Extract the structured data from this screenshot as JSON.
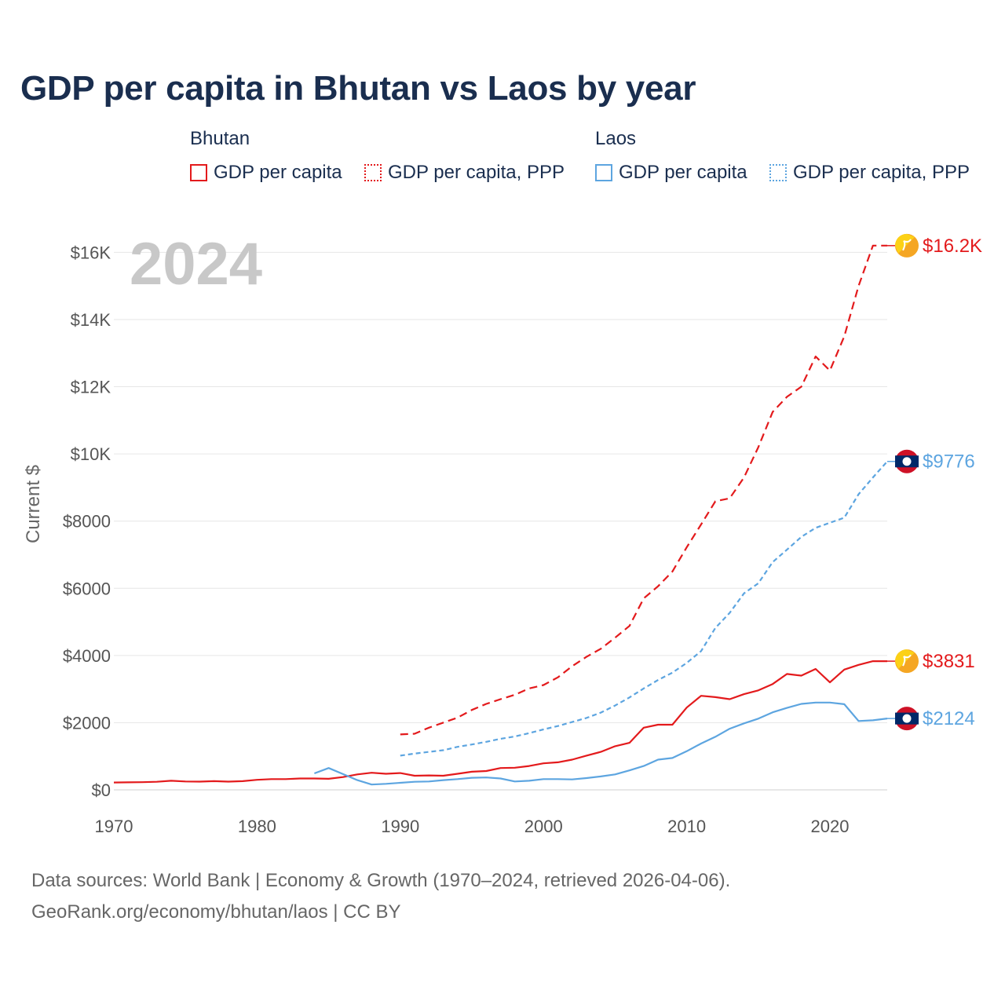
{
  "title": "GDP per capita in Bhutan vs Laos by year",
  "legend": {
    "groups": [
      {
        "name": "Bhutan",
        "color": "#e31a1c",
        "items": [
          {
            "label": "GDP per capita",
            "style": "solid"
          },
          {
            "label": "GDP per capita, PPP",
            "style": "dotted"
          }
        ]
      },
      {
        "name": "Laos",
        "color": "#5da5e0",
        "items": [
          {
            "label": "GDP per capita",
            "style": "solid"
          },
          {
            "label": "GDP per capita, PPP",
            "style": "dotted"
          }
        ]
      }
    ]
  },
  "year_label": "2024",
  "footer": {
    "line1": "Data sources: World Bank | Economy & Growth (1970–2024, retrieved 2026-04-06).",
    "line2": "GeoRank.org/economy/bhutan/laos | CC BY"
  },
  "chart_data": {
    "type": "line",
    "title": "GDP per capita in Bhutan vs Laos by year",
    "xlabel": "",
    "ylabel": "Current $",
    "xlim": [
      1970,
      2024
    ],
    "ylim": [
      0,
      16500
    ],
    "grid": true,
    "x_ticks": [
      {
        "value": 1970,
        "label": "1970"
      },
      {
        "value": 1980,
        "label": "1980"
      },
      {
        "value": 1990,
        "label": "1990"
      },
      {
        "value": 2000,
        "label": "2000"
      },
      {
        "value": 2010,
        "label": "2010"
      },
      {
        "value": 2020,
        "label": "2020"
      }
    ],
    "y_ticks": [
      {
        "value": 0,
        "label": "$0"
      },
      {
        "value": 2000,
        "label": "$2000"
      },
      {
        "value": 4000,
        "label": "$4000"
      },
      {
        "value": 6000,
        "label": "$6000"
      },
      {
        "value": 8000,
        "label": "$8000"
      },
      {
        "value": 10000,
        "label": "$10K"
      },
      {
        "value": 12000,
        "label": "$12K"
      },
      {
        "value": 14000,
        "label": "$14K"
      },
      {
        "value": 16000,
        "label": "$16K"
      }
    ],
    "series": [
      {
        "name": "Bhutan GDP per capita",
        "color": "#e31a1c",
        "dash": "none",
        "end_label": "$3831",
        "flag": "bhutan",
        "x": [
          1970,
          1971,
          1972,
          1973,
          1974,
          1975,
          1976,
          1977,
          1978,
          1979,
          1980,
          1981,
          1982,
          1983,
          1984,
          1985,
          1986,
          1987,
          1988,
          1989,
          1990,
          1991,
          1992,
          1993,
          1994,
          1995,
          1996,
          1997,
          1998,
          1999,
          2000,
          2001,
          2002,
          2003,
          2004,
          2005,
          2006,
          2007,
          2008,
          2009,
          2010,
          2011,
          2012,
          2013,
          2014,
          2015,
          2016,
          2017,
          2018,
          2019,
          2020,
          2021,
          2022,
          2023,
          2024
        ],
        "y": [
          220,
          225,
          230,
          240,
          270,
          250,
          245,
          260,
          245,
          260,
          300,
          320,
          320,
          340,
          340,
          330,
          380,
          460,
          510,
          480,
          500,
          420,
          430,
          420,
          480,
          540,
          560,
          650,
          660,
          710,
          790,
          820,
          900,
          1020,
          1130,
          1300,
          1400,
          1850,
          1940,
          1940,
          2450,
          2800,
          2760,
          2700,
          2850,
          2960,
          3150,
          3450,
          3400,
          3600,
          3200,
          3580,
          3720,
          3831,
          3831
        ]
      },
      {
        "name": "Bhutan GDP per capita, PPP",
        "color": "#e31a1c",
        "dash": "10,6",
        "end_label": "$16.2K",
        "flag": "bhutan",
        "x": [
          1990,
          1991,
          1992,
          1993,
          1994,
          1995,
          1996,
          1997,
          1998,
          1999,
          2000,
          2001,
          2002,
          2003,
          2004,
          2005,
          2006,
          2007,
          2008,
          2009,
          2010,
          2011,
          2012,
          2013,
          2014,
          2015,
          2016,
          2017,
          2018,
          2019,
          2020,
          2021,
          2022,
          2023,
          2024
        ],
        "y": [
          1650,
          1670,
          1850,
          2000,
          2150,
          2380,
          2560,
          2700,
          2830,
          3020,
          3120,
          3350,
          3680,
          3960,
          4200,
          4530,
          4880,
          5700,
          6060,
          6500,
          7220,
          7900,
          8590,
          8680,
          9300,
          10200,
          11250,
          11700,
          12000,
          12900,
          12480,
          13500,
          15000,
          16200,
          16200
        ]
      },
      {
        "name": "Laos GDP per capita",
        "color": "#5da5e0",
        "dash": "none",
        "end_label": "$2124",
        "flag": "laos",
        "x": [
          1984,
          1985,
          1986,
          1987,
          1988,
          1989,
          1990,
          1991,
          1992,
          1993,
          1994,
          1995,
          1996,
          1997,
          1998,
          1999,
          2000,
          2001,
          2002,
          2003,
          2004,
          2005,
          2006,
          2007,
          2008,
          2009,
          2010,
          2011,
          2012,
          2013,
          2014,
          2015,
          2016,
          2017,
          2018,
          2019,
          2020,
          2021,
          2022,
          2023,
          2024
        ],
        "y": [
          490,
          650,
          470,
          290,
          160,
          180,
          210,
          240,
          250,
          290,
          320,
          360,
          370,
          340,
          250,
          270,
          320,
          320,
          310,
          350,
          400,
          460,
          580,
          710,
          900,
          950,
          1150,
          1380,
          1580,
          1820,
          1980,
          2120,
          2310,
          2440,
          2560,
          2600,
          2600,
          2550,
          2050,
          2070,
          2124
        ]
      },
      {
        "name": "Laos GDP per capita, PPP",
        "color": "#5da5e0",
        "dash": "6,4",
        "end_label": "$9776",
        "flag": "laos",
        "x": [
          1990,
          1991,
          1992,
          1993,
          1994,
          1995,
          1996,
          1997,
          1998,
          1999,
          2000,
          2001,
          2002,
          2003,
          2004,
          2005,
          2006,
          2007,
          2008,
          2009,
          2010,
          2011,
          2012,
          2013,
          2014,
          2015,
          2016,
          2017,
          2018,
          2019,
          2020,
          2021,
          2022,
          2023,
          2024
        ],
        "y": [
          1020,
          1080,
          1130,
          1180,
          1280,
          1350,
          1430,
          1520,
          1590,
          1690,
          1800,
          1900,
          2020,
          2140,
          2300,
          2510,
          2750,
          3020,
          3270,
          3490,
          3780,
          4130,
          4820,
          5270,
          5850,
          6150,
          6780,
          7150,
          7530,
          7800,
          7950,
          8100,
          8800,
          9300,
          9776
        ]
      }
    ]
  }
}
